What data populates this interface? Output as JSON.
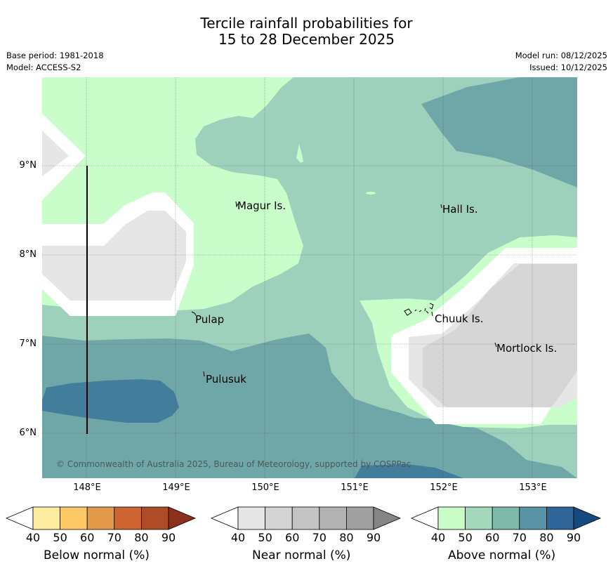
{
  "title_line1": "Tercile rainfall probabilities for",
  "title_line2": "15 to 28 December 2025",
  "meta": {
    "base_period": "Base period: 1981-2018",
    "model": "Model: ACCESS-S2",
    "model_run": "Model run: 08/12/2025",
    "issued": "Issued: 10/12/2025"
  },
  "map": {
    "lon_range": [
      147.5,
      153.5
    ],
    "lat_range": [
      5.5,
      10.0
    ],
    "lon_ticks": [
      "148°E",
      "149°E",
      "150°E",
      "151°E",
      "152°E",
      "153°E"
    ],
    "lat_ticks": [
      "9°N",
      "8°N",
      "7°N",
      "6°N"
    ],
    "places": [
      {
        "name": "Magur Is."
      },
      {
        "name": "Hall Is."
      },
      {
        "name": "Pulap"
      },
      {
        "name": "Chuuk Is."
      },
      {
        "name": "Mortlock Is."
      },
      {
        "name": "Pulusuk"
      }
    ],
    "copyright": "© Commonwealth of Australia 2025, Bureau of Meteorology, supported by COSPPac"
  },
  "colorbars": [
    {
      "label": "Below normal (%)",
      "ticks": [
        "40",
        "50",
        "60",
        "70",
        "80",
        "90"
      ],
      "colors": [
        "#ffffff",
        "#feeda0",
        "#fdc966",
        "#e39a48",
        "#cd6431",
        "#b04b27",
        "#8c2f1b"
      ]
    },
    {
      "label": "Near normal (%)",
      "ticks": [
        "40",
        "50",
        "60",
        "70",
        "80",
        "90"
      ],
      "colors": [
        "#ffffff",
        "#e6e6e6",
        "#d4d4d4",
        "#c4c4c4",
        "#b2b2b2",
        "#a0a0a0",
        "#858585"
      ]
    },
    {
      "label": "Above normal (%)",
      "ticks": [
        "40",
        "50",
        "60",
        "70",
        "80",
        "90"
      ],
      "colors": [
        "#ffffff",
        "#c8fdc8",
        "#a3d8bc",
        "#7fb8a8",
        "#5a93a6",
        "#2f6598",
        "#174a7c"
      ]
    }
  ]
}
